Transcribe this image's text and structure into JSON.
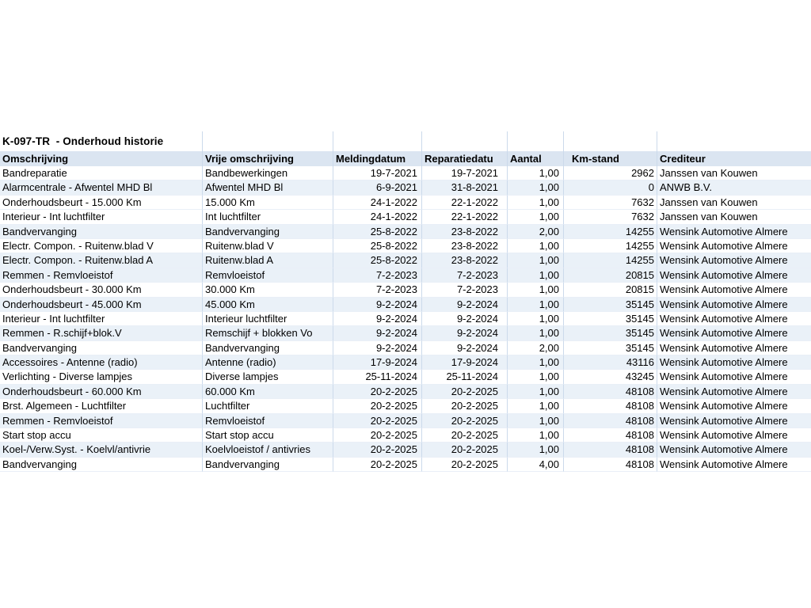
{
  "title": "K-097-TR  - Onderhoud historie",
  "colors": {
    "header_bg": "#dbe5f1",
    "row_shaded_bg": "#eaf1f8",
    "gridline": "#ccdaeb",
    "hgridline": "#e9eff7",
    "text": "#000000"
  },
  "table": {
    "columns": [
      {
        "key": "omschrijving",
        "label": "Omschrijving"
      },
      {
        "key": "vrije-omschrijving",
        "label": "Vrije omschrijving"
      },
      {
        "key": "meldingdatum",
        "label": "Meldingdatum"
      },
      {
        "key": "reparatiedatum",
        "label": "Reparatiedatu"
      },
      {
        "key": "aantal",
        "label": "Aantal"
      },
      {
        "key": "km-stand",
        "label": "Km-stand"
      },
      {
        "key": "crediteur",
        "label": "Crediteur"
      }
    ],
    "rows": [
      {
        "shaded": false,
        "cells": [
          "Bandreparatie",
          "Bandbewerkingen",
          "19-7-2021",
          "19-7-2021",
          "1,00",
          "2962",
          "Janssen van Kouwen"
        ]
      },
      {
        "shaded": true,
        "cells": [
          "Alarmcentrale - Afwentel MHD Bl",
          "Afwentel MHD Bl",
          "6-9-2021",
          "31-8-2021",
          "1,00",
          "0",
          "ANWB B.V."
        ]
      },
      {
        "shaded": false,
        "cells": [
          "Onderhoudsbeurt - 15.000 Km",
          "15.000 Km",
          "24-1-2022",
          "22-1-2022",
          "1,00",
          "7632",
          "Janssen van Kouwen"
        ]
      },
      {
        "shaded": false,
        "cells": [
          "Interieur - Int luchtfilter",
          "Int luchtfilter",
          "24-1-2022",
          "22-1-2022",
          "1,00",
          "7632",
          "Janssen van Kouwen"
        ]
      },
      {
        "shaded": true,
        "cells": [
          "Bandvervanging",
          "Bandvervanging",
          "25-8-2022",
          "23-8-2022",
          "2,00",
          "14255",
          "Wensink Automotive Almere"
        ]
      },
      {
        "shaded": false,
        "cells": [
          "Electr. Compon. - Ruitenw.blad V",
          "Ruitenw.blad V",
          "25-8-2022",
          "23-8-2022",
          "1,00",
          "14255",
          "Wensink Automotive Almere"
        ]
      },
      {
        "shaded": true,
        "cells": [
          "Electr. Compon. - Ruitenw.blad A",
          "Ruitenw.blad A",
          "25-8-2022",
          "23-8-2022",
          "1,00",
          "14255",
          "Wensink Automotive Almere"
        ]
      },
      {
        "shaded": true,
        "cells": [
          "Remmen - Remvloeistof",
          "Remvloeistof",
          "7-2-2023",
          "7-2-2023",
          "1,00",
          "20815",
          "Wensink Automotive Almere"
        ]
      },
      {
        "shaded": false,
        "cells": [
          "Onderhoudsbeurt - 30.000 Km",
          "30.000 Km",
          "7-2-2023",
          "7-2-2023",
          "1,00",
          "20815",
          "Wensink Automotive Almere"
        ]
      },
      {
        "shaded": true,
        "cells": [
          "Onderhoudsbeurt - 45.000 Km",
          "45.000 Km",
          "9-2-2024",
          "9-2-2024",
          "1,00",
          "35145",
          "Wensink Automotive Almere"
        ]
      },
      {
        "shaded": false,
        "cells": [
          "Interieur - Int luchtfilter",
          "Interieur luchtfilter",
          "9-2-2024",
          "9-2-2024",
          "1,00",
          "35145",
          "Wensink Automotive Almere"
        ]
      },
      {
        "shaded": true,
        "cells": [
          "Remmen - R.schijf+blok.V",
          "Remschijf + blokken Vo",
          "9-2-2024",
          "9-2-2024",
          "1,00",
          "35145",
          "Wensink Automotive Almere"
        ]
      },
      {
        "shaded": false,
        "cells": [
          "Bandvervanging",
          "Bandvervanging",
          "9-2-2024",
          "9-2-2024",
          "2,00",
          "35145",
          "Wensink Automotive Almere"
        ]
      },
      {
        "shaded": true,
        "cells": [
          "Accessoires - Antenne (radio)",
          "Antenne (radio)",
          "17-9-2024",
          "17-9-2024",
          "1,00",
          "43116",
          "Wensink Automotive Almere"
        ]
      },
      {
        "shaded": false,
        "cells": [
          "Verlichting - Diverse lampjes",
          "Diverse lampjes",
          "25-11-2024",
          "25-11-2024",
          "1,00",
          "43245",
          "Wensink Automotive Almere"
        ]
      },
      {
        "shaded": true,
        "cells": [
          "Onderhoudsbeurt - 60.000 Km",
          "60.000 Km",
          "20-2-2025",
          "20-2-2025",
          "1,00",
          "48108",
          "Wensink Automotive Almere"
        ]
      },
      {
        "shaded": false,
        "cells": [
          "Brst. Algemeen - Luchtfilter",
          "Luchtfilter",
          "20-2-2025",
          "20-2-2025",
          "1,00",
          "48108",
          "Wensink Automotive Almere"
        ]
      },
      {
        "shaded": true,
        "cells": [
          "Remmen - Remvloeistof",
          "Remvloeistof",
          "20-2-2025",
          "20-2-2025",
          "1,00",
          "48108",
          "Wensink Automotive Almere"
        ]
      },
      {
        "shaded": false,
        "cells": [
          "Start stop accu",
          "Start stop accu",
          "20-2-2025",
          "20-2-2025",
          "1,00",
          "48108",
          "Wensink Automotive Almere"
        ]
      },
      {
        "shaded": true,
        "cells": [
          "Koel-/Verw.Syst. - Koelvl/antivrie",
          "Koelvloeistof / antivries",
          "20-2-2025",
          "20-2-2025",
          "1,00",
          "48108",
          "Wensink Automotive Almere"
        ]
      },
      {
        "shaded": false,
        "cells": [
          "Bandvervanging",
          "Bandvervanging",
          "20-2-2025",
          "20-2-2025",
          "4,00",
          "48108",
          "Wensink Automotive Almere"
        ]
      }
    ]
  }
}
